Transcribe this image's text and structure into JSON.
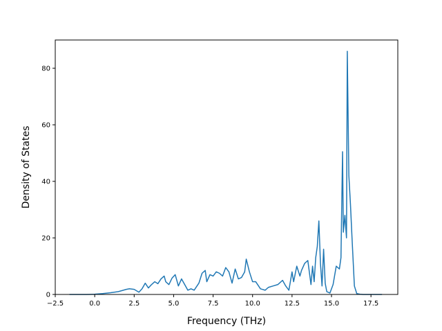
{
  "chart_data": {
    "type": "line",
    "title": "",
    "xlabel": "Frequency (THz)",
    "ylabel": "Density of States",
    "xlim": [
      -2.5,
      19.2
    ],
    "ylim": [
      0,
      90
    ],
    "grid": false,
    "line_color": "#1f77b4",
    "x_ticks": [
      -2.5,
      0.0,
      2.5,
      5.0,
      7.5,
      10.0,
      12.5,
      15.0,
      17.5
    ],
    "x_tick_labels": [
      "−2.5",
      "0.0",
      "2.5",
      "5.0",
      "7.5",
      "10.0",
      "12.5",
      "15.0",
      "17.5"
    ],
    "y_ticks": [
      0,
      20,
      40,
      60,
      80
    ],
    "y_tick_labels": [
      "0",
      "20",
      "40",
      "60",
      "80"
    ],
    "series": [
      {
        "x": [
          -1.6,
          -1.0,
          -0.5,
          0.0,
          0.5,
          1.0,
          1.5,
          2.0,
          2.2,
          2.5,
          2.8,
          3.0,
          3.2,
          3.4,
          3.6,
          3.8,
          4.0,
          4.2,
          4.4,
          4.5,
          4.7,
          4.9,
          5.1,
          5.3,
          5.5,
          5.7,
          5.9,
          6.1,
          6.3,
          6.6,
          6.8,
          7.0,
          7.1,
          7.3,
          7.5,
          7.7,
          7.9,
          8.1,
          8.3,
          8.5,
          8.7,
          8.9,
          9.1,
          9.3,
          9.5,
          9.6,
          9.8,
          10.0,
          10.2,
          10.5,
          10.8,
          11.0,
          11.3,
          11.6,
          11.9,
          12.1,
          12.3,
          12.5,
          12.6,
          12.8,
          13.0,
          13.1,
          13.3,
          13.5,
          13.7,
          13.8,
          13.9,
          14.0,
          14.1,
          14.2,
          14.3,
          14.4,
          14.5,
          14.6,
          14.7,
          14.9,
          15.1,
          15.3,
          15.5,
          15.6,
          15.7,
          15.75,
          15.85,
          15.95,
          16.0,
          16.1,
          16.2,
          16.3,
          16.45,
          16.6,
          16.8,
          17.0,
          17.5,
          18.2
        ],
        "y": [
          0,
          0,
          0,
          0.1,
          0.3,
          0.6,
          1.0,
          1.8,
          2.0,
          1.8,
          0.8,
          2.0,
          4.0,
          2.3,
          3.5,
          4.5,
          3.8,
          5.5,
          6.5,
          4.5,
          3.5,
          5.8,
          7.0,
          3.0,
          5.5,
          3.5,
          1.5,
          2.0,
          1.5,
          4.0,
          7.5,
          8.5,
          4.5,
          7.0,
          6.5,
          8.0,
          7.5,
          6.5,
          9.5,
          8.0,
          4.0,
          9.0,
          5.5,
          6.0,
          8.0,
          12.5,
          8.0,
          4.5,
          4.5,
          2.0,
          1.5,
          2.5,
          3.0,
          3.5,
          5.0,
          3.0,
          1.5,
          8.0,
          4.5,
          10.0,
          6.5,
          8.5,
          11.0,
          12.0,
          3.5,
          10.0,
          4.5,
          13.0,
          17.0,
          26.0,
          11.0,
          3.0,
          16.0,
          4.0,
          1.0,
          0.5,
          3.5,
          10.0,
          9.0,
          13.0,
          50.5,
          22.0,
          28.0,
          20.0,
          86.0,
          42.0,
          32.0,
          20.0,
          3.0,
          0.3,
          0.1,
          0,
          0,
          0
        ]
      }
    ]
  }
}
